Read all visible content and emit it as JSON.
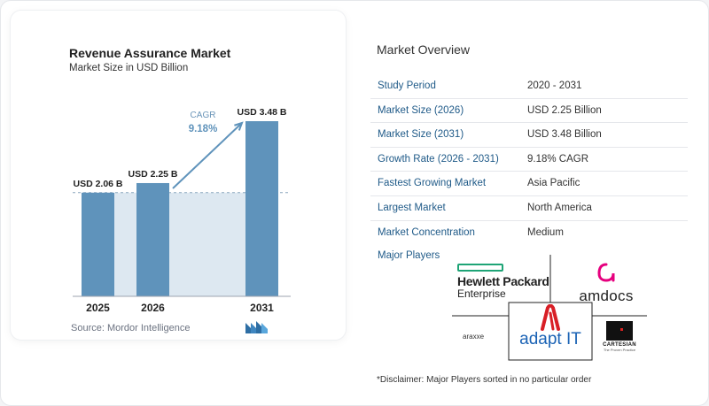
{
  "chart_card": {
    "title": "Revenue Assurance Market",
    "subtitle": "Market Size in USD Billion",
    "source": "Source:  Mordor Intelligence"
  },
  "chart_data": {
    "type": "bar",
    "title": "Revenue Assurance Market",
    "subtitle": "Market Size in USD Billion",
    "categories": [
      "2025",
      "2026",
      "2031"
    ],
    "values": [
      2.06,
      2.25,
      3.48
    ],
    "data_labels": [
      "USD 2.06 B",
      "USD 2.25 B",
      "USD 3.48 B"
    ],
    "cagr": {
      "label": "CAGR",
      "value": "9.18%"
    },
    "bar_color": "#5f93bb",
    "gap_color": "#dde8f1",
    "arrow_color": "#5f93bb"
  },
  "overview": {
    "title": "Market Overview",
    "rows": [
      {
        "label": "Study Period",
        "value": "2020 - 2031"
      },
      {
        "label": "Market Size (2026)",
        "value": "USD 2.25 Billion"
      },
      {
        "label": "Market Size (2031)",
        "value": "USD 3.48 Billion"
      },
      {
        "label": "Growth Rate (2026 - 2031)",
        "value": "9.18% CAGR"
      },
      {
        "label": "Fastest Growing Market",
        "value": "Asia Pacific"
      },
      {
        "label": "Largest Market",
        "value": "North America"
      },
      {
        "label": "Market Concentration",
        "value": "Medium"
      }
    ],
    "major_players_label": "Major Players",
    "players": {
      "hpe_line1": "Hewlett Packard",
      "hpe_line2": "Enterprise",
      "amdocs": "amdocs",
      "araxxe": "araxxe",
      "adaptit": "adapt IT",
      "cartesian": "CARTESIAN",
      "cartesian_tag": "The Proven Practice"
    },
    "disclaimer": "*Disclaimer: Major Players sorted in no particular order"
  },
  "colors": {
    "label_blue": "#1f5a88",
    "accent": "#5f93bb"
  }
}
